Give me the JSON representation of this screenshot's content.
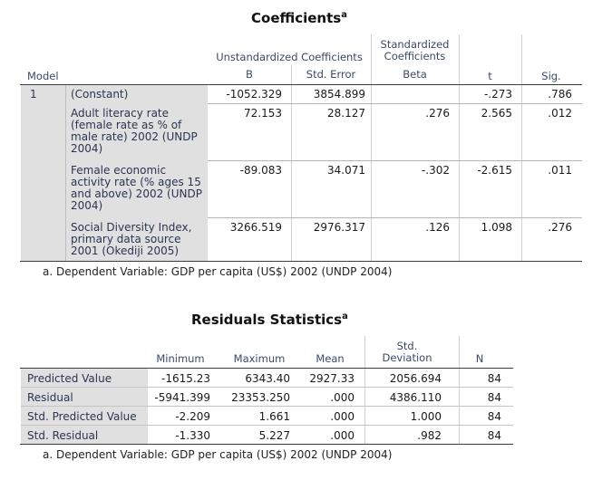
{
  "coefficients": {
    "title": "Coefficients",
    "title_sup": "a",
    "header": {
      "model": "Model",
      "unstd_group": "Unstandardized Coefficients",
      "std_group_line1": "Standardized",
      "std_group_line2": "Coefficients",
      "b": "B",
      "std_error": "Std. Error",
      "beta": "Beta",
      "t": "t",
      "sig": "Sig."
    },
    "model_number": "1",
    "rows": [
      {
        "label": "(Constant)",
        "b": "-1052.329",
        "se": "3854.899",
        "beta": "",
        "t": "-.273",
        "sig": ".786"
      },
      {
        "label": "Adult literacy rate (female rate as % of male rate) 2002 (UNDP 2004)",
        "b": "72.153",
        "se": "28.127",
        "beta": ".276",
        "t": "2.565",
        "sig": ".012"
      },
      {
        "label": "Female economic activity rate (% ages 15 and above) 2002 (UNDP 2004)",
        "b": "-89.083",
        "se": "34.071",
        "beta": "-.302",
        "t": "-2.615",
        "sig": ".011"
      },
      {
        "label": "Social Diversity Index, primary data source 2001 (Okediji 2005)",
        "b": "3266.519",
        "se": "2976.317",
        "beta": ".126",
        "t": "1.098",
        "sig": ".276"
      }
    ],
    "footnote": "a. Dependent Variable: GDP per capita (US$) 2002 (UNDP 2004)"
  },
  "residuals": {
    "title": "Residuals Statistics",
    "title_sup": "a",
    "header": {
      "minimum": "Minimum",
      "maximum": "Maximum",
      "mean": "Mean",
      "std_dev_line1": "Std.",
      "std_dev_line2": "Deviation",
      "n": "N"
    },
    "rows": [
      {
        "label": "Predicted Value",
        "min": "-1615.23",
        "max": "6343.40",
        "mean": "2927.33",
        "sd": "2056.694",
        "n": "84"
      },
      {
        "label": "Residual",
        "min": "-5941.399",
        "max": "23353.250",
        "mean": ".000",
        "sd": "4386.110",
        "n": "84"
      },
      {
        "label": "Std. Predicted Value",
        "min": "-2.209",
        "max": "1.661",
        "mean": ".000",
        "sd": "1.000",
        "n": "84"
      },
      {
        "label": "Std. Residual",
        "min": "-1.330",
        "max": "5.227",
        "mean": ".000",
        "sd": ".982",
        "n": "84"
      }
    ],
    "footnote": "a. Dependent Variable: GDP per capita (US$) 2002 (UNDP 2004)"
  }
}
